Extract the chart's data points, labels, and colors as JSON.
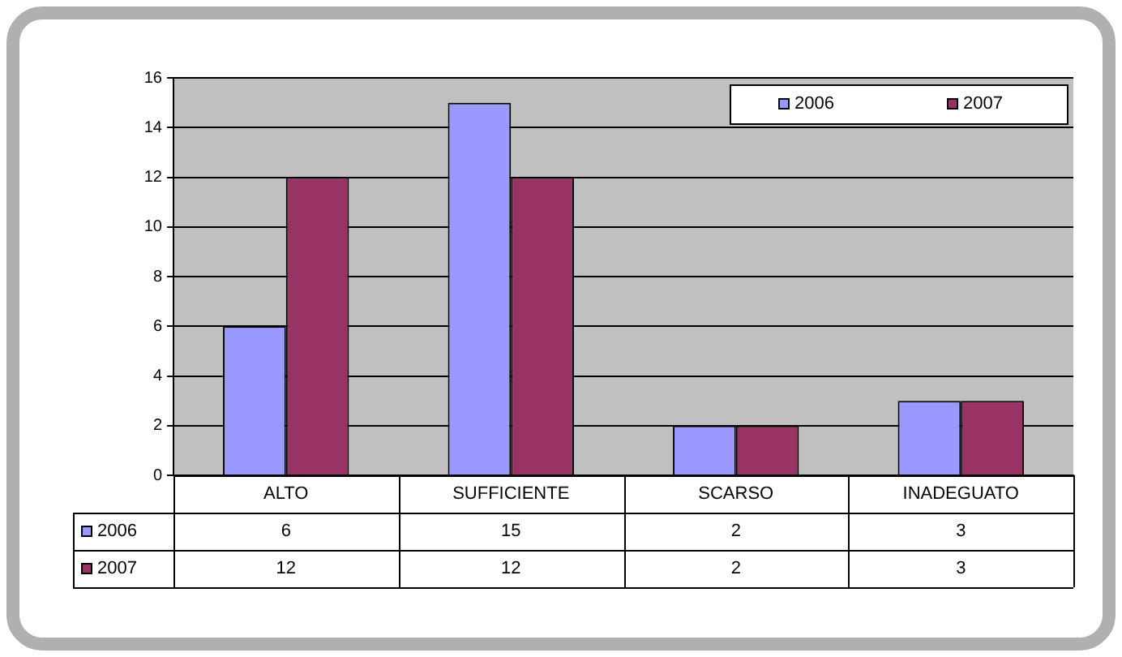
{
  "chart_data": {
    "type": "bar",
    "categories": [
      "ALTO",
      "SUFFICIENTE",
      "SCARSO",
      "INADEGUATO"
    ],
    "series": [
      {
        "name": "2006",
        "color": "#9999ff",
        "values": [
          6,
          15,
          2,
          3
        ]
      },
      {
        "name": "2007",
        "color": "#993366",
        "values": [
          12,
          12,
          2,
          3
        ]
      }
    ],
    "ylim": [
      0,
      16
    ],
    "yticks": [
      0,
      2,
      4,
      6,
      8,
      10,
      12,
      14,
      16
    ],
    "grid": "y",
    "legend": "top right",
    "data_labels": true
  }
}
